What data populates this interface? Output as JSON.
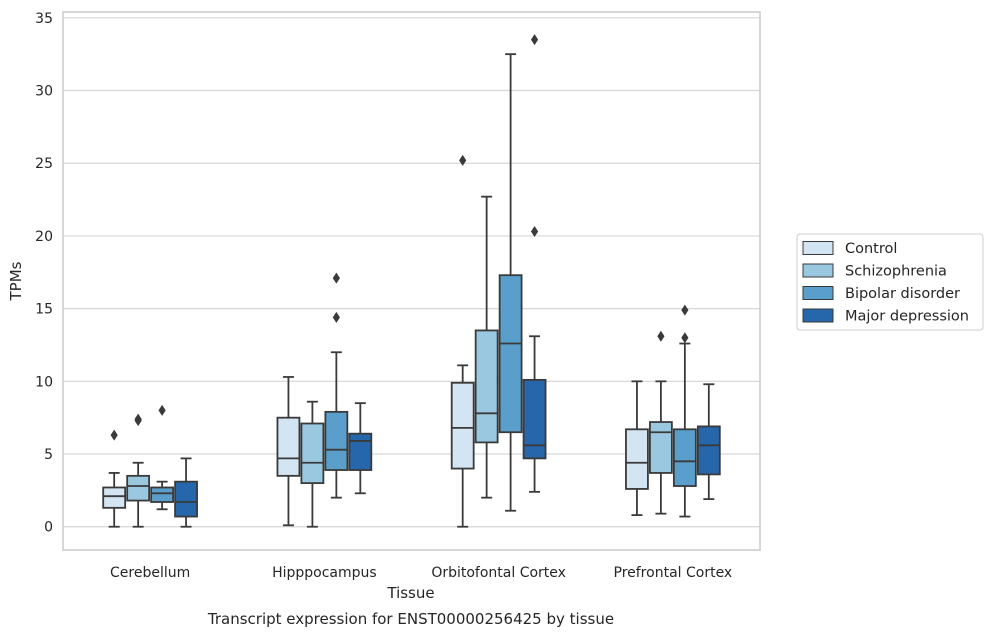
{
  "caption": "Transcript expression for ENST00000256425 by tissue",
  "chart_data": {
    "type": "box",
    "xlabel": "Tissue",
    "ylabel": "TPMs",
    "ylim": [
      -1.6,
      35.4
    ],
    "yticks": [
      0,
      5,
      10,
      15,
      20,
      25,
      30,
      35
    ],
    "grid": true,
    "legend_position": "right",
    "categories": [
      "Cerebellum",
      "Hipppocampus",
      "Orbitofontal Cortex",
      "Prefrontal Cortex"
    ],
    "series": [
      {
        "name": "Control",
        "color": "#d3e4f3",
        "boxes": [
          {
            "whislo": 0.0,
            "q1": 1.3,
            "med": 2.1,
            "q3": 2.7,
            "whishi": 3.7,
            "fliers": [
              6.3
            ]
          },
          {
            "whislo": 0.1,
            "q1": 3.5,
            "med": 4.7,
            "q3": 7.5,
            "whishi": 10.3,
            "fliers": []
          },
          {
            "whislo": 0.0,
            "q1": 4.0,
            "med": 6.8,
            "q3": 9.9,
            "whishi": 11.1,
            "fliers": [
              25.2
            ]
          },
          {
            "whislo": 0.8,
            "q1": 2.6,
            "med": 4.4,
            "q3": 6.7,
            "whishi": 10.0,
            "fliers": []
          }
        ]
      },
      {
        "name": "Schizophrenia",
        "color": "#9ac8e0",
        "boxes": [
          {
            "whislo": 0.0,
            "q1": 1.8,
            "med": 2.8,
            "q3": 3.5,
            "whishi": 4.4,
            "fliers": [
              7.4,
              7.3
            ]
          },
          {
            "whislo": 0.0,
            "q1": 3.0,
            "med": 4.4,
            "q3": 7.1,
            "whishi": 8.6,
            "fliers": []
          },
          {
            "whislo": 2.0,
            "q1": 5.8,
            "med": 7.8,
            "q3": 13.5,
            "whishi": 22.7,
            "fliers": []
          },
          {
            "whislo": 0.9,
            "q1": 3.7,
            "med": 6.5,
            "q3": 7.2,
            "whishi": 10.0,
            "fliers": [
              13.1
            ]
          }
        ]
      },
      {
        "name": "Bipolar disorder",
        "color": "#5a9fcb",
        "boxes": [
          {
            "whislo": 1.2,
            "q1": 1.7,
            "med": 2.3,
            "q3": 2.7,
            "whishi": 3.1,
            "fliers": [
              8.0
            ]
          },
          {
            "whislo": 2.0,
            "q1": 3.9,
            "med": 5.3,
            "q3": 7.9,
            "whishi": 12.0,
            "fliers": [
              14.4,
              17.1
            ]
          },
          {
            "whislo": 1.1,
            "q1": 6.5,
            "med": 12.6,
            "q3": 17.3,
            "whishi": 32.5,
            "fliers": []
          },
          {
            "whislo": 0.7,
            "q1": 2.8,
            "med": 4.5,
            "q3": 6.7,
            "whishi": 12.6,
            "fliers": [
              13.0,
              14.9
            ]
          }
        ]
      },
      {
        "name": "Major depression",
        "color": "#2666ab",
        "boxes": [
          {
            "whislo": 0.0,
            "q1": 0.7,
            "med": 1.7,
            "q3": 3.1,
            "whishi": 4.7,
            "fliers": []
          },
          {
            "whislo": 2.3,
            "q1": 3.9,
            "med": 5.9,
            "q3": 6.4,
            "whishi": 8.5,
            "fliers": []
          },
          {
            "whislo": 2.4,
            "q1": 4.7,
            "med": 5.6,
            "q3": 10.1,
            "whishi": 13.1,
            "fliers": [
              20.3,
              33.5
            ]
          },
          {
            "whislo": 1.9,
            "q1": 3.6,
            "med": 5.6,
            "q3": 6.9,
            "whishi": 9.8,
            "fliers": []
          }
        ]
      }
    ]
  }
}
